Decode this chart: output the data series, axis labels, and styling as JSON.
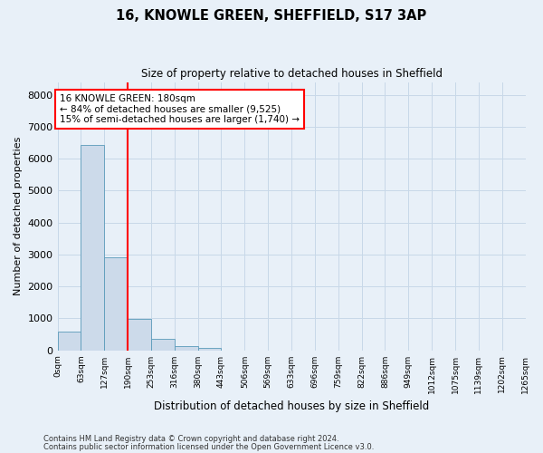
{
  "title_line1": "16, KNOWLE GREEN, SHEFFIELD, S17 3AP",
  "title_line2": "Size of property relative to detached houses in Sheffield",
  "xlabel": "Distribution of detached houses by size in Sheffield",
  "ylabel": "Number of detached properties",
  "bin_labels": [
    "0sqm",
    "63sqm",
    "127sqm",
    "190sqm",
    "253sqm",
    "316sqm",
    "380sqm",
    "443sqm",
    "506sqm",
    "569sqm",
    "633sqm",
    "696sqm",
    "759sqm",
    "822sqm",
    "886sqm",
    "949sqm",
    "1012sqm",
    "1075sqm",
    "1139sqm",
    "1202sqm",
    "1265sqm"
  ],
  "bar_values": [
    600,
    6420,
    2920,
    970,
    360,
    145,
    65,
    0,
    0,
    0,
    0,
    0,
    0,
    0,
    0,
    0,
    0,
    0,
    0,
    0
  ],
  "bar_color": "#ccdaea",
  "bar_edge_color": "#5a9aba",
  "vline_color": "red",
  "annotation_text": "16 KNOWLE GREEN: 180sqm\n← 84% of detached houses are smaller (9,525)\n15% of semi-detached houses are larger (1,740) →",
  "annotation_box_color": "white",
  "annotation_box_edge": "red",
  "ylim": [
    0,
    8400
  ],
  "yticks": [
    0,
    1000,
    2000,
    3000,
    4000,
    5000,
    6000,
    7000,
    8000
  ],
  "grid_color": "#c8d8e8",
  "background_color": "#e8f0f8",
  "footer_line1": "Contains HM Land Registry data © Crown copyright and database right 2024.",
  "footer_line2": "Contains public sector information licensed under the Open Government Licence v3.0."
}
